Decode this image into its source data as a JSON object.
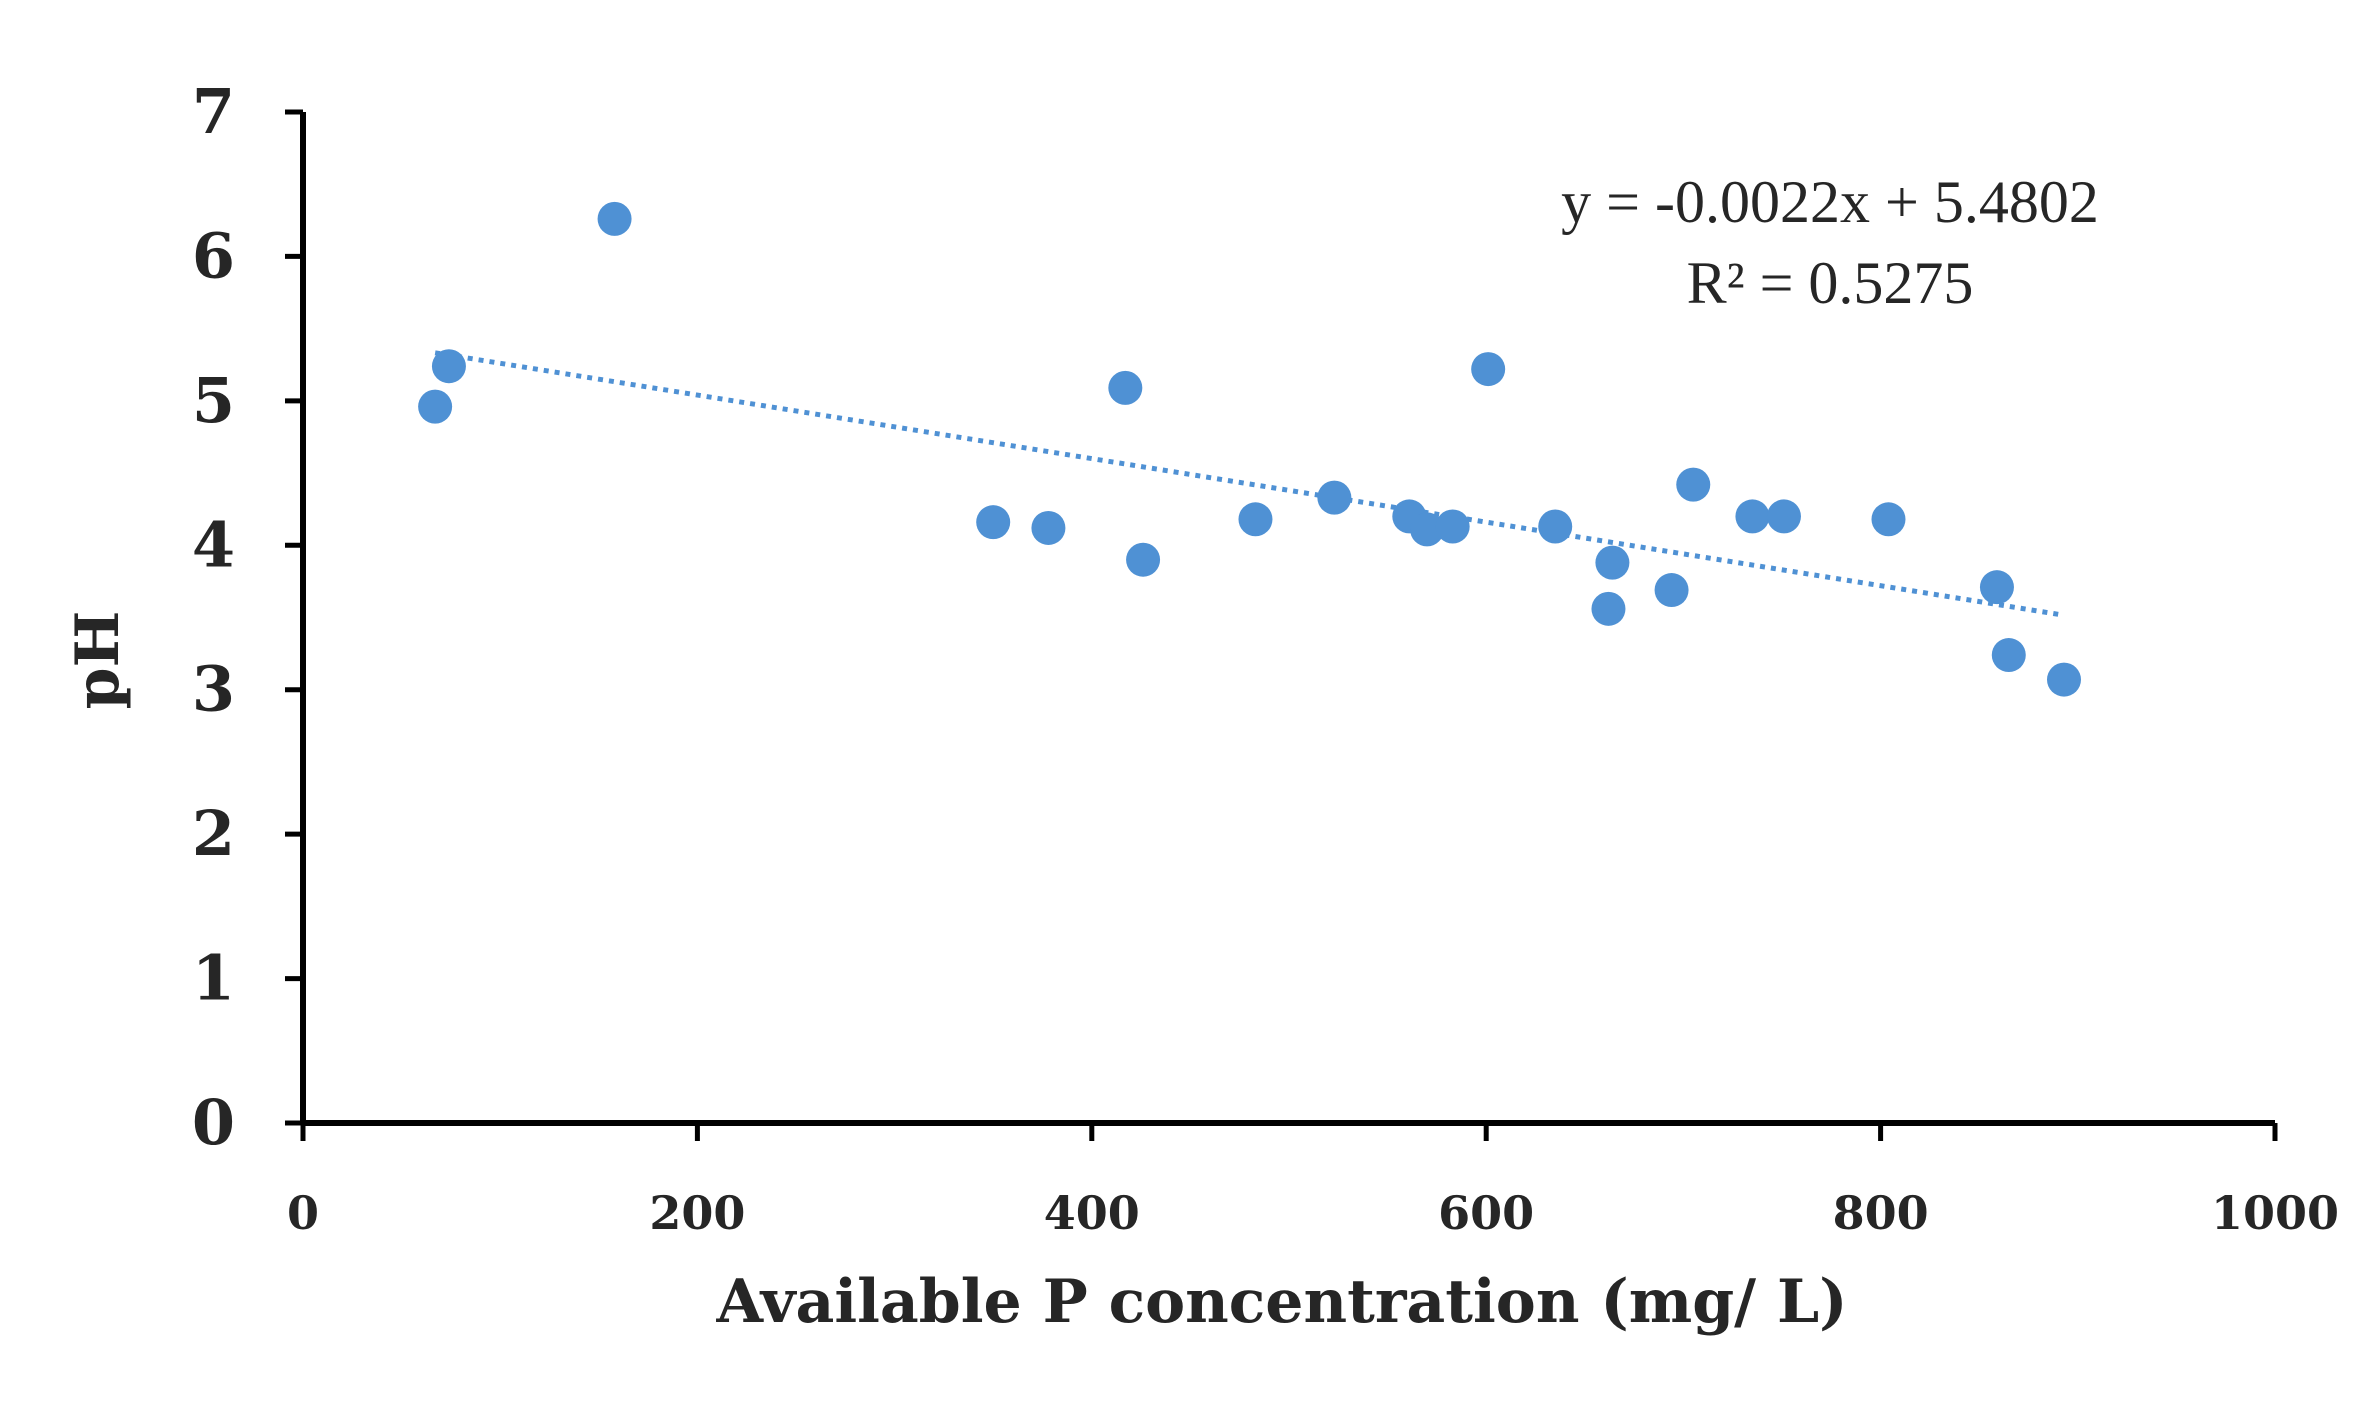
{
  "chart_data": {
    "type": "scatter",
    "title": "",
    "xlabel": "Available P concentration (mg/ L)",
    "ylabel": "pH",
    "xlim": [
      0,
      1000
    ],
    "ylim": [
      0,
      7
    ],
    "x_ticks": [
      "0",
      "200",
      "400",
      "600",
      "800",
      "1000"
    ],
    "y_ticks": [
      "0",
      "1",
      "2",
      "3",
      "4",
      "5",
      "6",
      "7"
    ],
    "grid": false,
    "legend": "none",
    "point_color": "#4f91d4",
    "trendline_color": "#4f91d4",
    "series": [
      {
        "name": "pH",
        "points": [
          {
            "x": 67,
            "y": 4.96
          },
          {
            "x": 74,
            "y": 5.24
          },
          {
            "x": 158,
            "y": 6.26
          },
          {
            "x": 350,
            "y": 4.16
          },
          {
            "x": 378,
            "y": 4.12
          },
          {
            "x": 417,
            "y": 5.09
          },
          {
            "x": 426,
            "y": 3.9
          },
          {
            "x": 483,
            "y": 4.18
          },
          {
            "x": 523,
            "y": 4.33
          },
          {
            "x": 561,
            "y": 4.2
          },
          {
            "x": 570,
            "y": 4.11
          },
          {
            "x": 583,
            "y": 4.13
          },
          {
            "x": 601,
            "y": 5.22
          },
          {
            "x": 635,
            "y": 4.13
          },
          {
            "x": 662,
            "y": 3.56
          },
          {
            "x": 664,
            "y": 3.88
          },
          {
            "x": 694,
            "y": 3.69
          },
          {
            "x": 705,
            "y": 4.42
          },
          {
            "x": 735,
            "y": 4.2
          },
          {
            "x": 751,
            "y": 4.2
          },
          {
            "x": 804,
            "y": 4.18
          },
          {
            "x": 859,
            "y": 3.71
          },
          {
            "x": 865,
            "y": 3.24
          },
          {
            "x": 893,
            "y": 3.07
          }
        ]
      }
    ],
    "trendline": {
      "type": "linear",
      "slope": -0.0022,
      "intercept": 5.4802,
      "x_range": [
        67,
        893
      ],
      "equation": "y = -0.0022x + 5.4802",
      "r_squared": "R² = 0.5275"
    }
  }
}
